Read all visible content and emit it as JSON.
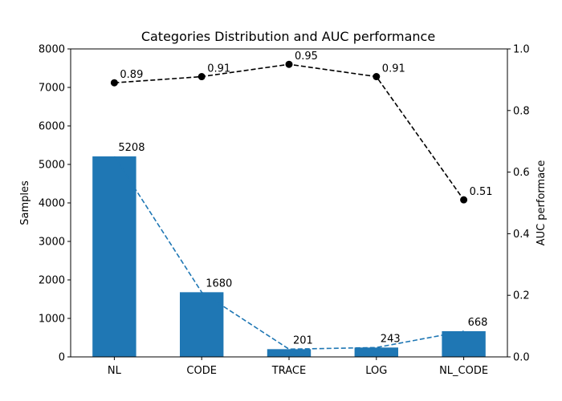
{
  "chart_data": {
    "type": "bar",
    "title": "Categories Distribution and AUC performance",
    "xlabel": "",
    "ylabel": "Samples",
    "ylabel_right": "AUC performace",
    "categories": [
      "NL",
      "CODE",
      "TRACE",
      "LOG",
      "NL_CODE"
    ],
    "ylim": [
      0,
      8000
    ],
    "ylim_right": [
      0,
      1.0
    ],
    "yticks": [
      "0",
      "1000",
      "2000",
      "3000",
      "4000",
      "5000",
      "6000",
      "7000",
      "8000"
    ],
    "yticks_right": [
      "0.0",
      "0.2",
      "0.4",
      "0.6",
      "0.8",
      "1.0"
    ],
    "grid": false,
    "series": [
      {
        "type": "bar",
        "axis": "left",
        "values": [
          5208,
          1680,
          201,
          243,
          668
        ],
        "labels": [
          "5208",
          "1680",
          "201",
          "243",
          "668"
        ],
        "color": "#1f77b4"
      },
      {
        "type": "line",
        "axis": "left",
        "style": "dashed",
        "values": [
          5208,
          1680,
          201,
          243,
          668
        ],
        "color": "#1f77b4"
      },
      {
        "type": "line",
        "axis": "right",
        "style": "dashed",
        "marker": "circle",
        "values": [
          0.89,
          0.91,
          0.95,
          0.91,
          0.51
        ],
        "labels": [
          "0.89",
          "0.91",
          "0.95",
          "0.91",
          "0.51"
        ],
        "color": "#000000"
      }
    ]
  }
}
